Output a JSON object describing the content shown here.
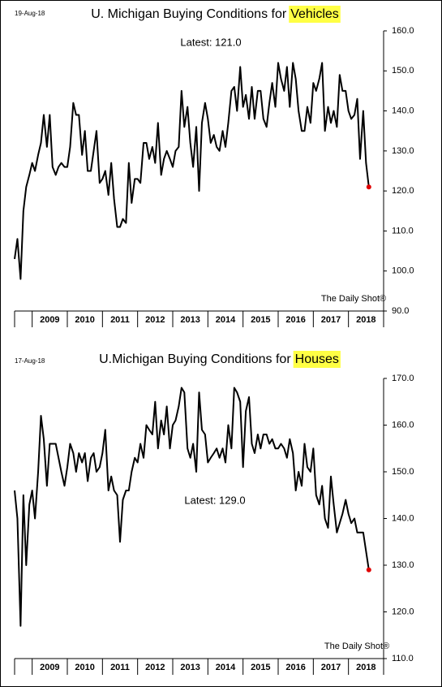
{
  "chart_data": [
    {
      "type": "line",
      "date_label": "19-Aug-18",
      "title": "U. Michigan Buying Conditions for",
      "title_highlight": "Vehicles",
      "annotation": "Latest:  121.0",
      "source": "The Daily Shot®",
      "color": "#000000",
      "last_point_color": "#e00000",
      "highlight_color": "#ffff44",
      "xlim": [
        2008.5,
        2019
      ],
      "xticks": [
        2009,
        2010,
        2011,
        2012,
        2013,
        2014,
        2015,
        2016,
        2017,
        2018
      ],
      "ylim": [
        90,
        160
      ],
      "yticks": [
        {
          "value": 90,
          "label": "90.0"
        },
        {
          "value": 100,
          "label": "100.0"
        },
        {
          "value": 110,
          "label": "110.0"
        },
        {
          "value": 120,
          "label": "120.0"
        },
        {
          "value": 130,
          "label": "130.0"
        },
        {
          "value": 140,
          "label": "140.0"
        },
        {
          "value": 150,
          "label": "150.0"
        },
        {
          "value": 160,
          "label": "160.0"
        }
      ],
      "x": [
        2008.5,
        2008.58,
        2008.67,
        2008.75,
        2008.83,
        2008.92,
        2009,
        2009.08,
        2009.17,
        2009.25,
        2009.33,
        2009.42,
        2009.5,
        2009.58,
        2009.67,
        2009.75,
        2009.83,
        2009.92,
        2010,
        2010.08,
        2010.17,
        2010.25,
        2010.33,
        2010.42,
        2010.5,
        2010.58,
        2010.67,
        2010.75,
        2010.83,
        2010.92,
        2011,
        2011.08,
        2011.17,
        2011.25,
        2011.33,
        2011.42,
        2011.5,
        2011.58,
        2011.67,
        2011.75,
        2011.83,
        2011.92,
        2012,
        2012.08,
        2012.17,
        2012.25,
        2012.33,
        2012.42,
        2012.5,
        2012.58,
        2012.67,
        2012.75,
        2012.83,
        2012.92,
        2013,
        2013.08,
        2013.17,
        2013.25,
        2013.33,
        2013.42,
        2013.5,
        2013.58,
        2013.67,
        2013.75,
        2013.83,
        2013.92,
        2014,
        2014.08,
        2014.17,
        2014.25,
        2014.33,
        2014.42,
        2014.5,
        2014.58,
        2014.67,
        2014.75,
        2014.83,
        2014.92,
        2015,
        2015.08,
        2015.17,
        2015.25,
        2015.33,
        2015.42,
        2015.5,
        2015.58,
        2015.67,
        2015.75,
        2015.83,
        2015.92,
        2016,
        2016.08,
        2016.17,
        2016.25,
        2016.33,
        2016.42,
        2016.5,
        2016.58,
        2016.67,
        2016.75,
        2016.83,
        2016.92,
        2017,
        2017.08,
        2017.17,
        2017.25,
        2017.33,
        2017.42,
        2017.5,
        2017.58,
        2017.67,
        2017.75,
        2017.83,
        2017.92,
        2018,
        2018.08,
        2018.17,
        2018.25,
        2018.33,
        2018.42,
        2018.5,
        2018.58
      ],
      "values": [
        103,
        108,
        98,
        115,
        121,
        124,
        127,
        125,
        129,
        132,
        139,
        131,
        139,
        126,
        124,
        126,
        127,
        126,
        126,
        131,
        142,
        139,
        139,
        129,
        135,
        125,
        125,
        130,
        135,
        122,
        123,
        125,
        119,
        127,
        118,
        111,
        111,
        113,
        112,
        127,
        117,
        123,
        123,
        122,
        132,
        132,
        128,
        131,
        127,
        137,
        124,
        128,
        130,
        128,
        126,
        130,
        131,
        145,
        136,
        141,
        132,
        126,
        136,
        120,
        137,
        142,
        138,
        132,
        134,
        131,
        130,
        135,
        131,
        137,
        145,
        146,
        140,
        151,
        141,
        144,
        138,
        146,
        138,
        145,
        145,
        138,
        136,
        142,
        147,
        141,
        152,
        148,
        145,
        151,
        141,
        152,
        148,
        140,
        135,
        135,
        141,
        137,
        147,
        145,
        148,
        152,
        135,
        141,
        137,
        140,
        136,
        149,
        145,
        145,
        140,
        138,
        139,
        143,
        128,
        140,
        127,
        121
      ]
    },
    {
      "type": "line",
      "date_label": "17-Aug-18",
      "title": "U.Michigan Buying Conditions for",
      "title_highlight": "Houses",
      "annotation": "Latest:  129.0",
      "source": "The Daily Shot®",
      "color": "#000000",
      "last_point_color": "#e00000",
      "highlight_color": "#ffff44",
      "xlim": [
        2008.5,
        2019
      ],
      "xticks": [
        2009,
        2010,
        2011,
        2012,
        2013,
        2014,
        2015,
        2016,
        2017,
        2018
      ],
      "ylim": [
        110,
        170
      ],
      "yticks": [
        {
          "value": 110,
          "label": "110.0"
        },
        {
          "value": 120,
          "label": "120.0"
        },
        {
          "value": 130,
          "label": "130.0"
        },
        {
          "value": 140,
          "label": "140.0"
        },
        {
          "value": 150,
          "label": "150.0"
        },
        {
          "value": 160,
          "label": "160.0"
        },
        {
          "value": 170,
          "label": "170.0"
        }
      ],
      "x": [
        2008.5,
        2008.58,
        2008.67,
        2008.75,
        2008.83,
        2008.92,
        2009,
        2009.08,
        2009.17,
        2009.25,
        2009.33,
        2009.42,
        2009.5,
        2009.58,
        2009.67,
        2009.75,
        2009.83,
        2009.92,
        2010,
        2010.08,
        2010.17,
        2010.25,
        2010.33,
        2010.42,
        2010.5,
        2010.58,
        2010.67,
        2010.75,
        2010.83,
        2010.92,
        2011,
        2011.08,
        2011.17,
        2011.25,
        2011.33,
        2011.42,
        2011.5,
        2011.58,
        2011.67,
        2011.75,
        2011.83,
        2011.92,
        2012,
        2012.08,
        2012.17,
        2012.25,
        2012.33,
        2012.42,
        2012.5,
        2012.58,
        2012.67,
        2012.75,
        2012.83,
        2012.92,
        2013,
        2013.08,
        2013.17,
        2013.25,
        2013.33,
        2013.42,
        2013.5,
        2013.58,
        2013.67,
        2013.75,
        2013.83,
        2013.92,
        2014,
        2014.08,
        2014.17,
        2014.25,
        2014.33,
        2014.42,
        2014.5,
        2014.58,
        2014.67,
        2014.75,
        2014.83,
        2014.92,
        2015,
        2015.08,
        2015.17,
        2015.25,
        2015.33,
        2015.42,
        2015.5,
        2015.58,
        2015.67,
        2015.75,
        2015.83,
        2015.92,
        2016,
        2016.08,
        2016.17,
        2016.25,
        2016.33,
        2016.42,
        2016.5,
        2016.58,
        2016.67,
        2016.75,
        2016.83,
        2016.92,
        2017,
        2017.08,
        2017.17,
        2017.25,
        2017.33,
        2017.42,
        2017.5,
        2017.58,
        2017.67,
        2017.75,
        2017.83,
        2017.92,
        2018,
        2018.08,
        2018.17,
        2018.25,
        2018.33,
        2018.42,
        2018.5,
        2018.58
      ],
      "values": [
        146,
        140,
        117,
        145,
        130,
        143,
        146,
        140,
        150,
        162,
        157,
        147,
        156,
        156,
        156,
        153,
        150,
        147,
        151,
        156,
        154,
        150,
        154,
        152,
        154,
        148,
        153,
        154,
        150,
        151,
        154,
        159,
        146,
        149,
        146,
        145,
        135,
        144,
        146,
        146,
        150,
        153,
        152,
        156,
        153,
        160,
        159,
        158,
        165,
        155,
        161,
        158,
        164,
        155,
        160,
        161,
        164,
        168,
        167,
        155,
        153,
        156,
        150,
        167,
        159,
        158,
        152,
        153,
        154,
        155,
        153,
        155,
        152,
        160,
        155,
        168,
        167,
        165,
        151,
        163,
        166,
        156,
        154,
        158,
        155,
        158,
        158,
        156,
        157,
        155,
        155,
        156,
        155,
        153,
        157,
        154,
        146,
        150,
        147,
        156,
        151,
        150,
        155,
        145,
        143,
        147,
        140,
        138,
        149,
        143,
        137,
        139,
        141,
        144,
        141,
        139,
        140,
        137,
        137,
        137,
        133,
        129
      ]
    }
  ]
}
